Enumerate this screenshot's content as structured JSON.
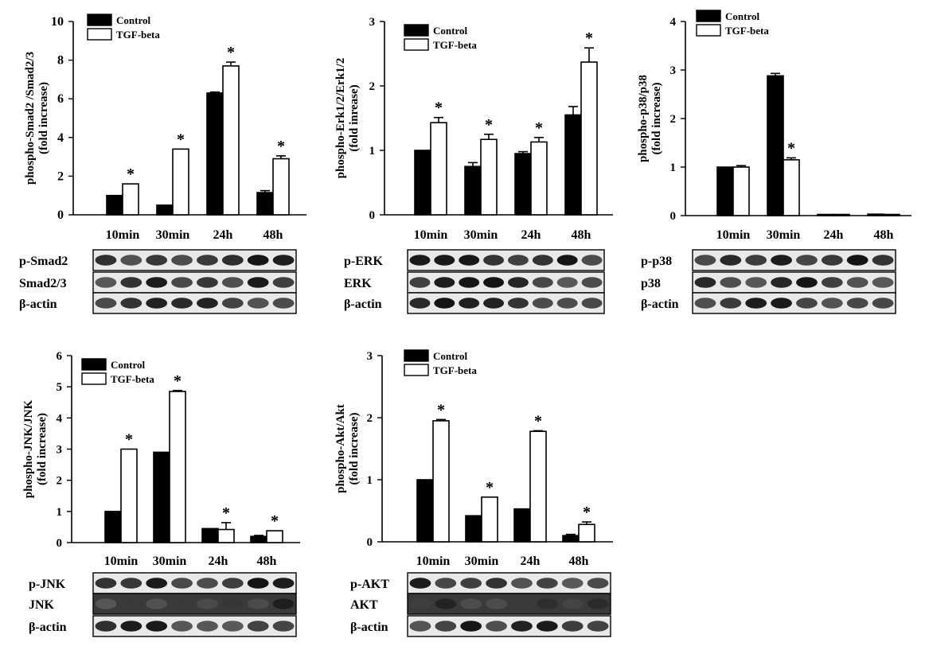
{
  "colors": {
    "control": "#000000",
    "tgf": "#ffffff",
    "axis": "#000000"
  },
  "chart_data": [
    {
      "type": "bar",
      "ylabel": [
        "phospho-Smad2 /Smad2/3",
        "(fold increase)"
      ],
      "ylim": [
        0,
        10
      ],
      "yticks": [
        0,
        2,
        4,
        6,
        8,
        10
      ],
      "categories": [
        "10min",
        "30min",
        "24h",
        "48h"
      ],
      "legend": [
        "Control",
        "TGF-beta"
      ],
      "legend_position": "top-left",
      "series": [
        {
          "name": "Control",
          "values": [
            1.0,
            0.5,
            6.3,
            1.15
          ],
          "errors": [
            0,
            0,
            0.05,
            0.1
          ]
        },
        {
          "name": "TGF-beta",
          "values": [
            1.6,
            3.4,
            7.7,
            2.9
          ],
          "errors": [
            0,
            0,
            0.2,
            0.15
          ]
        }
      ],
      "significant": [
        true,
        true,
        true,
        true
      ],
      "annotation": "*",
      "blot_labels": [
        "p-Smad2",
        "Smad2/3",
        "β-actin"
      ]
    },
    {
      "type": "bar",
      "ylabel": [
        "phospho-Erk1/2/Erk1/2",
        "(fold inrease)"
      ],
      "ylim": [
        0,
        3
      ],
      "yticks": [
        0,
        1,
        2,
        3
      ],
      "categories": [
        "10min",
        "30min",
        "24h",
        "48h"
      ],
      "legend": [
        "Control",
        "TGF-beta"
      ],
      "legend_position": "top-left",
      "series": [
        {
          "name": "Control",
          "values": [
            1.0,
            0.75,
            0.95,
            1.55
          ],
          "errors": [
            0,
            0.06,
            0.03,
            0.13
          ]
        },
        {
          "name": "TGF-beta",
          "values": [
            1.43,
            1.17,
            1.13,
            2.37
          ],
          "errors": [
            0.08,
            0.08,
            0.07,
            0.22
          ]
        }
      ],
      "significant": [
        true,
        true,
        true,
        true
      ],
      "annotation": "*",
      "blot_labels": [
        "p-ERK",
        "ERK",
        "β-actin"
      ]
    },
    {
      "type": "bar",
      "ylabel": [
        "phospho-p38/p38",
        "(fold increase)"
      ],
      "ylim": [
        0,
        4
      ],
      "yticks": [
        0,
        1,
        2,
        3,
        4
      ],
      "categories": [
        "10min",
        "30min",
        "24h",
        "48h"
      ],
      "legend": [
        "Control",
        "TGF-beta"
      ],
      "legend_position": "top-left",
      "series": [
        {
          "name": "Control",
          "values": [
            1.0,
            2.88,
            0.02,
            0.03
          ],
          "errors": [
            0,
            0.05,
            0,
            0
          ]
        },
        {
          "name": "TGF-beta",
          "values": [
            1.0,
            1.15,
            0.02,
            0.02
          ],
          "errors": [
            0.03,
            0.04,
            0,
            0
          ]
        }
      ],
      "significant": [
        false,
        true,
        false,
        false
      ],
      "annotation": "*",
      "blot_labels": [
        "p-p38",
        "p38",
        "β-actin"
      ]
    },
    {
      "type": "bar",
      "ylabel": [
        "phospho-JNK/JNK",
        "(fold increase)"
      ],
      "ylim": [
        0,
        6
      ],
      "yticks": [
        0,
        1,
        2,
        3,
        4,
        5,
        6
      ],
      "categories": [
        "10min",
        "30min",
        "24h",
        "48h"
      ],
      "legend": [
        "Control",
        "TGF-beta"
      ],
      "legend_position": "top-left",
      "series": [
        {
          "name": "Control",
          "values": [
            1.0,
            2.9,
            0.45,
            0.2
          ],
          "errors": [
            0,
            0,
            0,
            0.03
          ]
        },
        {
          "name": "TGF-beta",
          "values": [
            3.0,
            4.85,
            0.42,
            0.38
          ],
          "errors": [
            0,
            0.03,
            0.22,
            0
          ]
        }
      ],
      "significant": [
        true,
        true,
        true,
        true
      ],
      "annotation": "*",
      "blot_labels": [
        "p-JNK",
        "JNK",
        "β-actin"
      ]
    },
    {
      "type": "bar",
      "ylabel": [
        "phospho-Akt/Akt",
        "(fold increase)"
      ],
      "ylim": [
        0,
        3
      ],
      "yticks": [
        0,
        1,
        2,
        3
      ],
      "categories": [
        "10min",
        "30min",
        "24h",
        "48h"
      ],
      "legend": [
        "Control",
        "TGF-beta"
      ],
      "legend_position": "top-left",
      "series": [
        {
          "name": "Control",
          "values": [
            1.0,
            0.42,
            0.53,
            0.1
          ],
          "errors": [
            0,
            0,
            0,
            0.02
          ]
        },
        {
          "name": "TGF-beta",
          "values": [
            1.95,
            0.72,
            1.78,
            0.28
          ],
          "errors": [
            0.02,
            0,
            0.01,
            0.04
          ]
        }
      ],
      "significant": [
        true,
        true,
        true,
        true
      ],
      "annotation": "*",
      "blot_labels": [
        "p-AKT",
        "AKT",
        "β-actin"
      ]
    }
  ]
}
